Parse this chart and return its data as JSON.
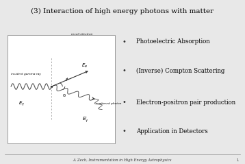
{
  "title": "(3) Interaction of high energy photons with matter",
  "title_bg": "#b8d4e8",
  "slide_bg": "#e0e0e0",
  "body_bg": "#e8e8e8",
  "bullet_items": [
    "Photoelectric Absorption",
    "(Inverse) Compton Scattering",
    "Electron-positron pair production",
    "Application in Detectors"
  ],
  "footer_text": "A. Zech, Instrumentation in High Energy Astrophysics",
  "footer_page": "1",
  "title_fontsize": 7.5,
  "bullet_fontsize": 6.2,
  "footer_fontsize": 3.8
}
